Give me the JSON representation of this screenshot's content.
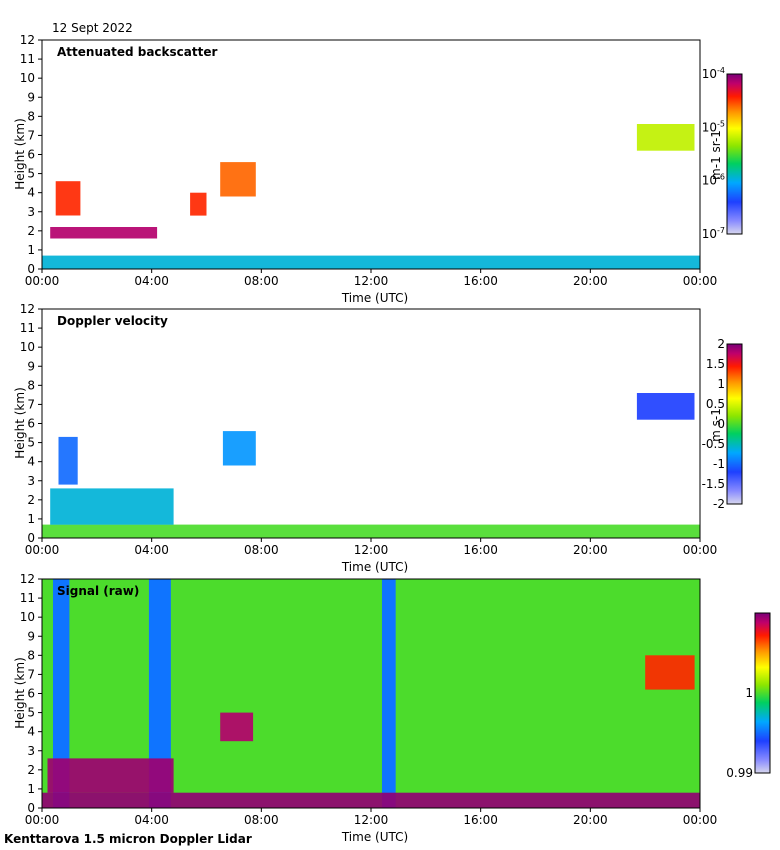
{
  "figure": {
    "date": "12 Sept 2022",
    "footer": "Kenttarova 1.5 micron Doppler Lidar"
  },
  "chart_data": [
    {
      "type": "heatmap",
      "title": "Attenuated backscatter",
      "xlabel": "Time (UTC)",
      "ylabel": "Height (km)",
      "xticks": [
        "00:00",
        "04:00",
        "08:00",
        "12:00",
        "16:00",
        "20:00",
        "00:00"
      ],
      "xlim_hours": [
        0,
        24
      ],
      "ylim": [
        0,
        12
      ],
      "yticks": [
        0,
        1,
        2,
        3,
        4,
        5,
        6,
        7,
        8,
        9,
        10,
        11,
        12
      ],
      "colorbar": {
        "label": "m-1 sr-1",
        "scale": "log",
        "range": [
          1e-07,
          0.0001
        ],
        "ticks": [
          {
            "base": "10",
            "exp": "-4",
            "value": 0.0001
          },
          {
            "base": "10",
            "exp": "-5",
            "value": 1e-05
          },
          {
            "base": "10",
            "exp": "-6",
            "value": 1e-06
          },
          {
            "base": "10",
            "exp": "-7",
            "value": 1e-07
          }
        ]
      },
      "features": [
        {
          "name": "boundary layer aerosol",
          "t_start": 0.0,
          "t_end": 24.0,
          "z_low": 0.0,
          "z_high": 0.7,
          "level": 0.35
        },
        {
          "name": "low cloud layer",
          "t_start": 0.3,
          "t_end": 4.2,
          "z_low": 1.6,
          "z_high": 2.2,
          "level": 0.95
        },
        {
          "name": "early cloud",
          "t_start": 0.5,
          "t_end": 1.4,
          "z_low": 2.8,
          "z_high": 4.6,
          "level": 0.85
        },
        {
          "name": "mid cloud",
          "t_start": 5.4,
          "t_end": 6.0,
          "z_low": 2.8,
          "z_high": 4.0,
          "level": 0.85
        },
        {
          "name": "mid cloud 2",
          "t_start": 6.5,
          "t_end": 7.8,
          "z_low": 3.8,
          "z_high": 5.6,
          "level": 0.8
        },
        {
          "name": "upper cirrus",
          "t_start": 21.7,
          "t_end": 23.8,
          "z_low": 6.2,
          "z_high": 7.6,
          "level": 0.6
        }
      ]
    },
    {
      "type": "heatmap",
      "title": "Doppler velocity",
      "xlabel": "Time (UTC)",
      "ylabel": "Height (km)",
      "xticks": [
        "00:00",
        "04:00",
        "08:00",
        "12:00",
        "16:00",
        "20:00",
        "00:00"
      ],
      "xlim_hours": [
        0,
        24
      ],
      "ylim": [
        0,
        12
      ],
      "yticks": [
        0,
        1,
        2,
        3,
        4,
        5,
        6,
        7,
        8,
        9,
        10,
        11,
        12
      ],
      "colorbar": {
        "label": "m s-1",
        "scale": "linear",
        "range": [
          -2,
          2
        ],
        "ticks": [
          "2",
          "1.5",
          "1",
          "0.5",
          "0",
          "-0.5",
          "-1",
          "-1.5",
          "-2"
        ]
      },
      "features": [
        {
          "name": "boundary layer",
          "t_start": 0.0,
          "t_end": 24.0,
          "z_low": 0.0,
          "z_high": 0.7,
          "level": 0.5
        },
        {
          "name": "low cloud layer",
          "t_start": 0.3,
          "t_end": 4.8,
          "z_low": 0.7,
          "z_high": 2.6,
          "level": 0.35
        },
        {
          "name": "early cloud",
          "t_start": 0.6,
          "t_end": 1.3,
          "z_low": 2.8,
          "z_high": 5.3,
          "level": 0.25
        },
        {
          "name": "mid cloud 2",
          "t_start": 6.6,
          "t_end": 7.8,
          "z_low": 3.8,
          "z_high": 5.6,
          "level": 0.3
        },
        {
          "name": "upper cirrus",
          "t_start": 21.7,
          "t_end": 23.8,
          "z_low": 6.2,
          "z_high": 7.6,
          "level": 0.2
        }
      ]
    },
    {
      "type": "heatmap",
      "title": "Signal (raw)",
      "xlabel": "Time (UTC)",
      "ylabel": "Height (km)",
      "xticks": [
        "00:00",
        "04:00",
        "08:00",
        "12:00",
        "16:00",
        "20:00",
        "00:00"
      ],
      "xlim_hours": [
        0,
        24
      ],
      "ylim": [
        0,
        12
      ],
      "yticks": [
        0,
        1,
        2,
        3,
        4,
        5,
        6,
        7,
        8,
        9,
        10,
        11,
        12
      ],
      "colorbar": {
        "label": "",
        "scale": "linear",
        "range": [
          0.99,
          1.01
        ],
        "ticks": [
          "1",
          "0.99"
        ]
      },
      "features": [
        {
          "name": "strong near-surface signal",
          "t_start": 0.0,
          "t_end": 24.0,
          "z_low": 0.0,
          "z_high": 0.8,
          "level": 0.98
        },
        {
          "name": "low cloud",
          "t_start": 0.2,
          "t_end": 4.8,
          "z_low": 0.8,
          "z_high": 2.6,
          "level": 0.97
        },
        {
          "name": "mid cloud",
          "t_start": 6.5,
          "t_end": 7.7,
          "z_low": 3.5,
          "z_high": 5.0,
          "level": 0.95
        },
        {
          "name": "upper cirrus",
          "t_start": 22.0,
          "t_end": 23.8,
          "z_low": 6.2,
          "z_high": 8.0,
          "level": 0.85
        }
      ]
    }
  ]
}
